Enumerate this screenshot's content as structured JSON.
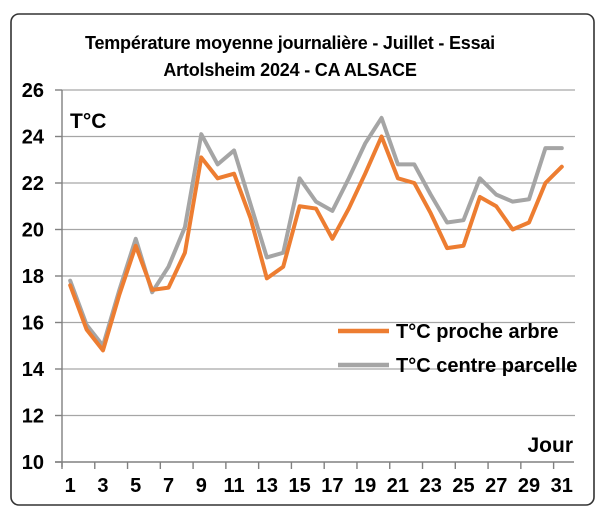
{
  "chart_data": {
    "type": "line",
    "title_line1": "Température moyenne journalière - Juillet - Essai",
    "title_line2": "Artolsheim 2024 - CA ALSACE",
    "y_axis_label": "T°C",
    "x_axis_label": "Jour",
    "x": [
      1,
      2,
      3,
      4,
      5,
      6,
      7,
      8,
      9,
      10,
      11,
      12,
      13,
      14,
      15,
      16,
      17,
      18,
      19,
      20,
      21,
      22,
      23,
      24,
      25,
      26,
      27,
      28,
      29,
      30,
      31
    ],
    "x_tick_labels": [
      "1",
      "3",
      "5",
      "7",
      "9",
      "11",
      "13",
      "15",
      "17",
      "19",
      "21",
      "23",
      "25",
      "27",
      "29",
      "31"
    ],
    "y_ticks": [
      10,
      12,
      14,
      16,
      18,
      20,
      22,
      24,
      26
    ],
    "ylim": [
      10,
      26
    ],
    "grid": true,
    "legend_position": "middle-right",
    "series": [
      {
        "name": "T°C proche arbre",
        "color": "#ED7D31",
        "values": [
          17.6,
          15.7,
          14.8,
          17.2,
          19.3,
          17.4,
          17.5,
          19.0,
          23.1,
          22.2,
          22.4,
          20.5,
          17.9,
          18.4,
          21.0,
          20.9,
          19.6,
          20.9,
          22.4,
          24.0,
          22.2,
          22.0,
          20.7,
          19.2,
          19.3,
          21.4,
          21.0,
          20.0,
          20.3,
          22.0,
          22.7
        ]
      },
      {
        "name": "T°C centre parcelle",
        "color": "#A5A5A5",
        "values": [
          17.8,
          15.9,
          15.0,
          17.4,
          19.6,
          17.3,
          18.4,
          20.1,
          24.1,
          22.8,
          23.4,
          21.1,
          18.8,
          19.0,
          22.2,
          21.2,
          20.8,
          22.2,
          23.7,
          24.8,
          22.8,
          22.8,
          21.5,
          20.3,
          20.4,
          22.2,
          21.5,
          21.2,
          21.3,
          23.5,
          23.5
        ]
      }
    ]
  },
  "colors": {
    "gridline": "#A6A6A6",
    "axis": "#808080",
    "text": "#000000",
    "frame_border": "#333333",
    "background": "#FFFFFF"
  }
}
